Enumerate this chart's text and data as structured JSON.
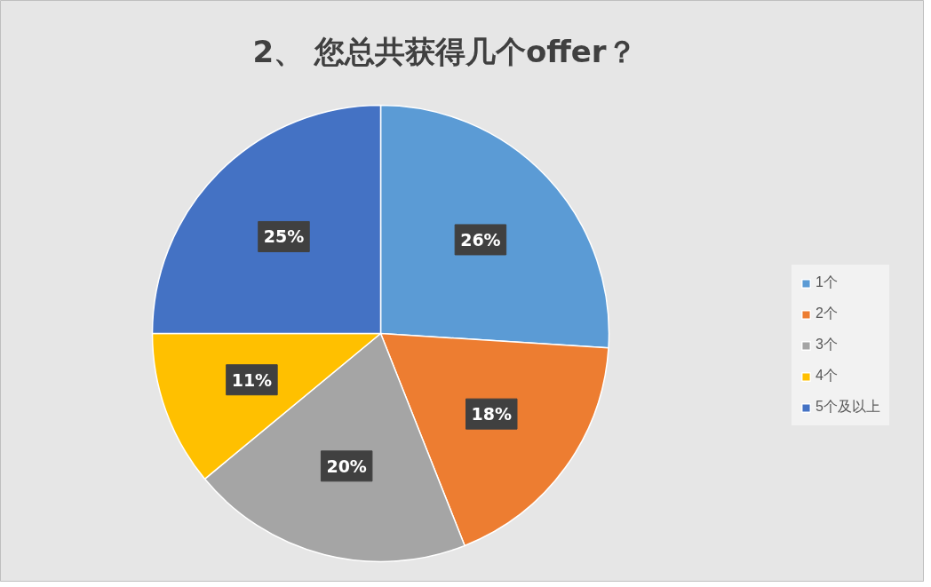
{
  "chart_data": {
    "type": "pie",
    "title": "2、 您总共获得几个offer？",
    "categories": [
      "1个",
      "2个",
      "3个",
      "4个",
      "5个及以上"
    ],
    "values": [
      26,
      18,
      20,
      11,
      25
    ],
    "colors": [
      "#5b9bd5",
      "#ed7d31",
      "#a5a5a5",
      "#ffc000",
      "#4472c4"
    ],
    "value_labels": [
      "26%",
      "18%",
      "20%",
      "11%",
      "25%"
    ],
    "legend": "right"
  }
}
